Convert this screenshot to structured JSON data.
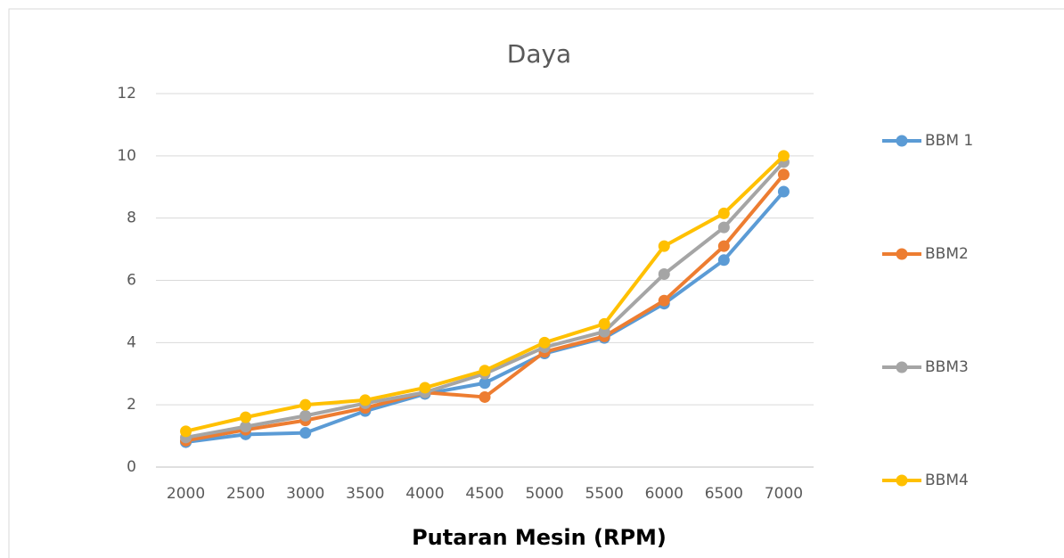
{
  "chart_data": {
    "type": "line",
    "title": "Daya",
    "x_label": "Putaran Mesin (RPM)",
    "categories": [
      "2000",
      "2500",
      "3000",
      "3500",
      "4000",
      "4500",
      "5000",
      "5500",
      "6000",
      "6500",
      "7000"
    ],
    "series": [
      {
        "name": "BBM 1",
        "color": "#5b9bd5",
        "values": [
          0.8,
          1.05,
          1.1,
          1.8,
          2.35,
          2.7,
          3.65,
          4.15,
          5.25,
          6.65,
          8.85
        ]
      },
      {
        "name": "BBM2",
        "color": "#ed7d31",
        "values": [
          0.85,
          1.2,
          1.5,
          1.9,
          2.4,
          2.25,
          3.7,
          4.2,
          5.35,
          7.1,
          9.4
        ]
      },
      {
        "name": "BBM3",
        "color": "#a5a5a5",
        "values": [
          0.95,
          1.3,
          1.65,
          2.05,
          2.4,
          3.0,
          3.85,
          4.35,
          6.2,
          7.7,
          9.8
        ]
      },
      {
        "name": "BBM4",
        "color": "#ffc000",
        "values": [
          1.15,
          1.6,
          2.0,
          2.15,
          2.55,
          3.1,
          4.0,
          4.6,
          7.1,
          8.15,
          10.0
        ]
      }
    ],
    "ylim": [
      0,
      12
    ],
    "yticks": [
      0,
      2,
      4,
      6,
      8,
      10,
      12
    ],
    "grid": true,
    "legend": "right"
  }
}
